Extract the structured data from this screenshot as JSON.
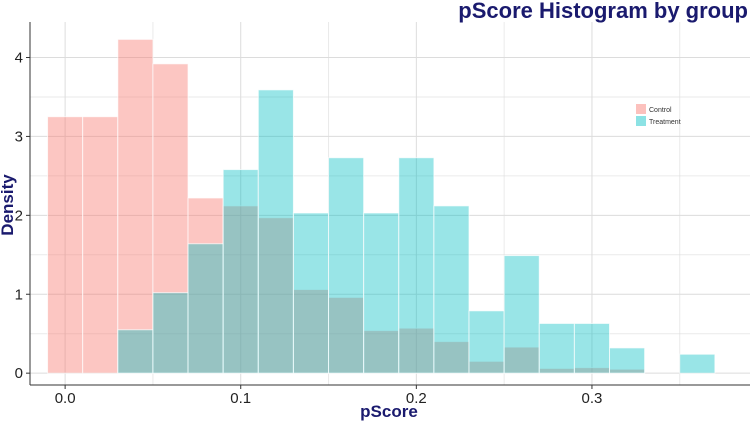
{
  "chart_data": {
    "type": "bar",
    "title": "pScore Histogram by group",
    "xlabel": "pScore",
    "ylabel": "Density",
    "xlim": [
      -0.02,
      0.39
    ],
    "ylim": [
      -0.15,
      4.45
    ],
    "x_ticks": [
      0.0,
      0.1,
      0.2,
      0.3
    ],
    "x_tick_labels": [
      "0.0",
      "0.1",
      "0.2",
      "0.3"
    ],
    "y_ticks": [
      0,
      1,
      2,
      3,
      4
    ],
    "y_tick_labels": [
      "0",
      "1",
      "2",
      "3",
      "4"
    ],
    "bin_width": 0.02,
    "grid": true,
    "legend_position": "top-right",
    "series": [
      {
        "name": "Control",
        "color": "#f8766d",
        "bin_starts": [
          -0.01,
          0.01,
          0.03,
          0.05,
          0.07,
          0.09,
          0.11,
          0.13,
          0.15,
          0.17,
          0.19,
          0.21,
          0.23,
          0.25,
          0.27,
          0.29,
          0.31
        ],
        "values": [
          3.25,
          3.25,
          4.23,
          3.92,
          2.22,
          2.12,
          1.97,
          1.06,
          0.96,
          0.54,
          0.57,
          0.4,
          0.15,
          0.33,
          0.06,
          0.07,
          0.05
        ]
      },
      {
        "name": "Treatment",
        "color": "#00bfc4",
        "bin_starts": [
          0.03,
          0.05,
          0.07,
          0.09,
          0.11,
          0.13,
          0.15,
          0.17,
          0.19,
          0.21,
          0.23,
          0.25,
          0.27,
          0.29,
          0.31,
          0.35
        ],
        "values": [
          0.55,
          1.02,
          1.64,
          2.58,
          3.59,
          2.03,
          2.73,
          2.03,
          2.73,
          2.12,
          0.79,
          1.49,
          0.63,
          0.63,
          0.32,
          0.24
        ]
      }
    ]
  }
}
